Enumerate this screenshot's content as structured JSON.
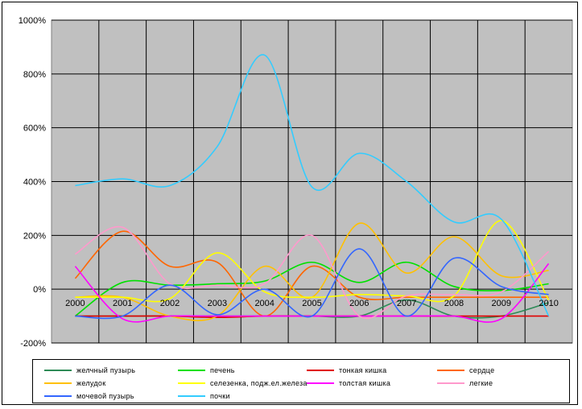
{
  "chart_data": {
    "type": "line",
    "title": "",
    "xlabel": "",
    "ylabel": "",
    "categories": [
      "2000",
      "2001",
      "2002",
      "2003",
      "2004",
      "2005",
      "2006",
      "2007",
      "2008",
      "2009",
      "2010"
    ],
    "y_ticks": [
      "1000%",
      "800%",
      "600%",
      "400%",
      "200%",
      "0%",
      "-200%"
    ],
    "ylim": [
      -200,
      1000
    ],
    "grid": true,
    "plot_background": "#c0c0c0",
    "legend_position": "bottom",
    "series": [
      {
        "name": "желчный пузырь",
        "color": "#2e8b57",
        "values": [
          -100,
          -100,
          -100,
          -100,
          -100,
          -100,
          -100,
          -40,
          -100,
          -100,
          -50
        ]
      },
      {
        "name": "печень",
        "color": "#00e000",
        "values": [
          -100,
          25,
          15,
          20,
          30,
          100,
          25,
          100,
          10,
          -5,
          20
        ]
      },
      {
        "name": "тонкая кишка",
        "color": "#e00000",
        "values": [
          -100,
          -100,
          -100,
          -105,
          -100,
          -100,
          -100,
          -100,
          -100,
          -100,
          -100
        ]
      },
      {
        "name": "сердце",
        "color": "#ff6600",
        "values": [
          40,
          215,
          85,
          100,
          -100,
          85,
          -30,
          -30,
          -30,
          -30,
          -30
        ]
      },
      {
        "name": "желудок",
        "color": "#ffc000",
        "values": [
          -30,
          -30,
          -100,
          -100,
          85,
          -30,
          245,
          60,
          195,
          50,
          70
        ]
      },
      {
        "name": "селезенка, подж.ел.железа",
        "color": "#ffff00",
        "values": [
          -30,
          -30,
          -35,
          135,
          -10,
          -30,
          -20,
          -25,
          -25,
          255,
          -40
        ]
      },
      {
        "name": "толстая кишка",
        "color": "#ff00ff",
        "values": [
          85,
          -110,
          -100,
          -100,
          -100,
          -100,
          -100,
          -100,
          -100,
          -110,
          95
        ]
      },
      {
        "name": "легкие",
        "color": "#ff99cc",
        "values": [
          130,
          230,
          20,
          15,
          20,
          200,
          -100,
          -25,
          -20,
          -10,
          140
        ]
      },
      {
        "name": "мочевой пузырь",
        "color": "#3366ff",
        "values": [
          -100,
          -100,
          15,
          -95,
          0,
          -100,
          150,
          -100,
          115,
          10,
          -20
        ]
      },
      {
        "name": "почки",
        "color": "#33ccff",
        "values": [
          385,
          410,
          385,
          530,
          870,
          380,
          505,
          400,
          250,
          260,
          -100
        ]
      }
    ]
  }
}
